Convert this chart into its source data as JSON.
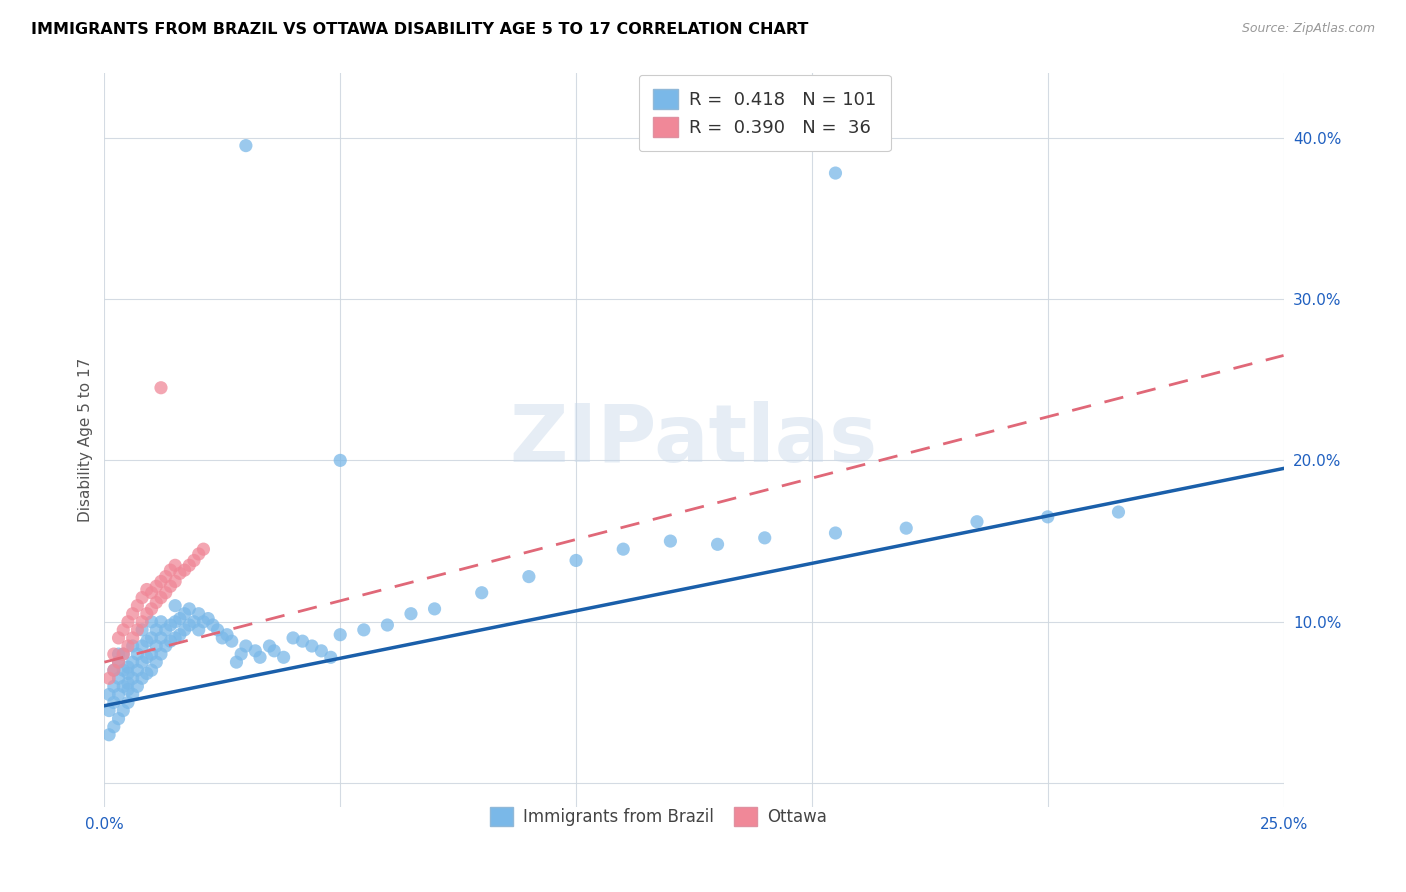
{
  "title": "IMMIGRANTS FROM BRAZIL VS OTTAWA DISABILITY AGE 5 TO 17 CORRELATION CHART",
  "source": "Source: ZipAtlas.com",
  "ylabel": "Disability Age 5 to 17",
  "xlim": [
    0.0,
    0.25
  ],
  "ylim": [
    -0.015,
    0.44
  ],
  "xticks": [
    0.0,
    0.05,
    0.1,
    0.15,
    0.2,
    0.25
  ],
  "xticklabels": [
    "0.0%",
    "",
    "",
    "",
    "",
    "25.0%"
  ],
  "yticks": [
    0.0,
    0.1,
    0.2,
    0.3,
    0.4
  ],
  "yticklabels": [
    "",
    "10.0%",
    "20.0%",
    "30.0%",
    "40.0%"
  ],
  "brazil_color": "#7ab8e8",
  "ottawa_color": "#f08898",
  "brazil_line_color": "#1a5faa",
  "ottawa_line_color": "#e06878",
  "watermark_text": "ZIPatlas",
  "legend1_label1": "R =  0.418   N = 101",
  "legend1_label2": "R =  0.390   N =  36",
  "legend2_label1": "Immigrants from Brazil",
  "legend2_label2": "Ottawa",
  "brazil_x": [
    0.001,
    0.001,
    0.001,
    0.002,
    0.002,
    0.002,
    0.002,
    0.003,
    0.003,
    0.003,
    0.003,
    0.003,
    0.004,
    0.004,
    0.004,
    0.004,
    0.005,
    0.005,
    0.005,
    0.005,
    0.005,
    0.006,
    0.006,
    0.006,
    0.006,
    0.007,
    0.007,
    0.007,
    0.008,
    0.008,
    0.008,
    0.008,
    0.009,
    0.009,
    0.009,
    0.01,
    0.01,
    0.01,
    0.01,
    0.011,
    0.011,
    0.011,
    0.012,
    0.012,
    0.012,
    0.013,
    0.013,
    0.014,
    0.014,
    0.015,
    0.015,
    0.015,
    0.016,
    0.016,
    0.017,
    0.017,
    0.018,
    0.018,
    0.019,
    0.02,
    0.02,
    0.021,
    0.022,
    0.023,
    0.024,
    0.025,
    0.026,
    0.027,
    0.028,
    0.029,
    0.03,
    0.032,
    0.033,
    0.035,
    0.036,
    0.038,
    0.04,
    0.042,
    0.044,
    0.046,
    0.048,
    0.05,
    0.055,
    0.06,
    0.065,
    0.07,
    0.08,
    0.09,
    0.1,
    0.11,
    0.12,
    0.13,
    0.14,
    0.155,
    0.17,
    0.185,
    0.2,
    0.215,
    0.03,
    0.155,
    0.05
  ],
  "brazil_y": [
    0.03,
    0.045,
    0.055,
    0.035,
    0.05,
    0.06,
    0.07,
    0.04,
    0.055,
    0.065,
    0.075,
    0.08,
    0.045,
    0.06,
    0.07,
    0.08,
    0.05,
    0.062,
    0.072,
    0.058,
    0.068,
    0.055,
    0.065,
    0.075,
    0.085,
    0.06,
    0.07,
    0.08,
    0.065,
    0.075,
    0.085,
    0.095,
    0.068,
    0.078,
    0.088,
    0.07,
    0.08,
    0.09,
    0.1,
    0.075,
    0.085,
    0.095,
    0.08,
    0.09,
    0.1,
    0.085,
    0.095,
    0.088,
    0.098,
    0.09,
    0.1,
    0.11,
    0.092,
    0.102,
    0.095,
    0.105,
    0.098,
    0.108,
    0.1,
    0.095,
    0.105,
    0.1,
    0.102,
    0.098,
    0.095,
    0.09,
    0.092,
    0.088,
    0.075,
    0.08,
    0.085,
    0.082,
    0.078,
    0.085,
    0.082,
    0.078,
    0.09,
    0.088,
    0.085,
    0.082,
    0.078,
    0.092,
    0.095,
    0.098,
    0.105,
    0.108,
    0.118,
    0.128,
    0.138,
    0.145,
    0.15,
    0.148,
    0.152,
    0.155,
    0.158,
    0.162,
    0.165,
    0.168,
    0.395,
    0.378,
    0.2
  ],
  "ottawa_x": [
    0.001,
    0.002,
    0.002,
    0.003,
    0.003,
    0.004,
    0.004,
    0.005,
    0.005,
    0.006,
    0.006,
    0.007,
    0.007,
    0.008,
    0.008,
    0.009,
    0.009,
    0.01,
    0.01,
    0.011,
    0.011,
    0.012,
    0.012,
    0.013,
    0.013,
    0.014,
    0.014,
    0.015,
    0.015,
    0.016,
    0.017,
    0.018,
    0.019,
    0.02,
    0.021,
    0.012
  ],
  "ottawa_y": [
    0.065,
    0.07,
    0.08,
    0.075,
    0.09,
    0.08,
    0.095,
    0.085,
    0.1,
    0.09,
    0.105,
    0.095,
    0.11,
    0.1,
    0.115,
    0.105,
    0.12,
    0.108,
    0.118,
    0.112,
    0.122,
    0.115,
    0.125,
    0.118,
    0.128,
    0.122,
    0.132,
    0.125,
    0.135,
    0.13,
    0.132,
    0.135,
    0.138,
    0.142,
    0.145,
    0.245
  ],
  "brazil_line_x": [
    0.0,
    0.25
  ],
  "brazil_line_y": [
    0.048,
    0.195
  ],
  "ottawa_line_x": [
    0.0,
    0.25
  ],
  "ottawa_line_y": [
    0.075,
    0.265
  ]
}
